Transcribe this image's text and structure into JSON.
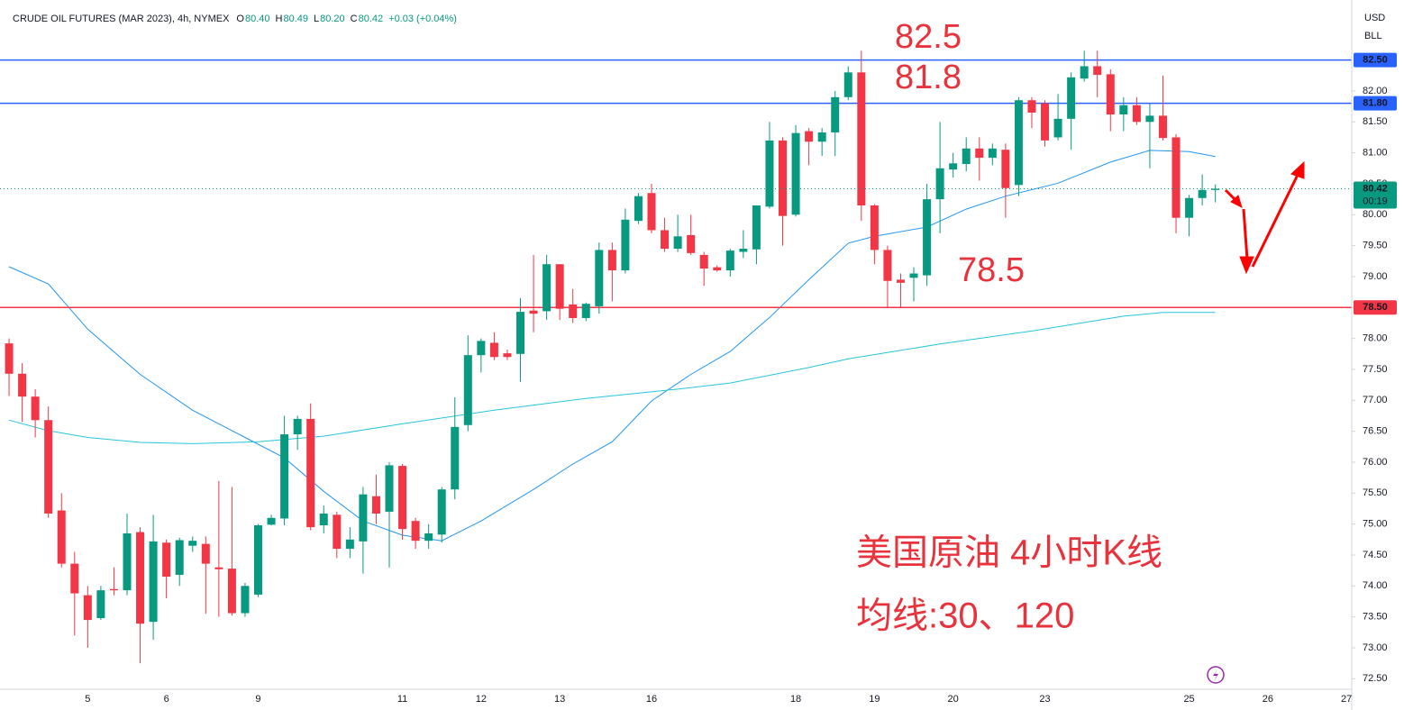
{
  "header": {
    "symbol": "CRUDE OIL FUTURES (MAR 2023), 4h, NYMEX",
    "ohlc": [
      {
        "label": "O",
        "value": "80.40"
      },
      {
        "label": "H",
        "value": "80.49"
      },
      {
        "label": "L",
        "value": "80.20"
      },
      {
        "label": "C",
        "value": "80.42"
      }
    ],
    "change": "+0.03 (+0.04%)",
    "currency": "USD",
    "unit": "BLL"
  },
  "chart_data": {
    "type": "candlestick",
    "up_color": "#089981",
    "down_color": "#f23645",
    "open": [
      77.92,
      77.43,
      77.06,
      76.68,
      75.22,
      74.36,
      73.85,
      73.48,
      73.95,
      73.93,
      74.87,
      73.42,
      74.7,
      74.18,
      74.65,
      74.68,
      74.3,
      74.28,
      73.56,
      73.86,
      74.99,
      75.09,
      76.45,
      76.7,
      74.98,
      75.15,
      74.6,
      74.72,
      75.45,
      75.2,
      75.94,
      75.05,
      74.73,
      74.83,
      75.56,
      76.6,
      77.73,
      77.93,
      77.76,
      77.75,
      78.45,
      78.44,
      79.2,
      78.55,
      78.33,
      78.52,
      79.43,
      79.1,
      79.9,
      80.35,
      79.75,
      79.45,
      79.67,
      79.35,
      79.15,
      79.1,
      79.4,
      79.44,
      80.13,
      81.2,
      80.0,
      81.35,
      81.18,
      81.33,
      81.9,
      82.3,
      80.15,
      79.43,
      78.95,
      78.98,
      79.02,
      80.25,
      80.73,
      80.82,
      81.07,
      80.92,
      81.05,
      80.48,
      81.85,
      81.8,
      81.25,
      81.55,
      82.2,
      82.4,
      82.27,
      81.62,
      81.77,
      81.5,
      81.6,
      81.25,
      79.95,
      80.27,
      80.4
    ],
    "high": [
      78.0,
      77.6,
      77.18,
      76.9,
      75.5,
      74.55,
      74.0,
      74.0,
      74.3,
      75.17,
      74.95,
      75.15,
      74.75,
      74.78,
      74.8,
      74.8,
      75.7,
      75.6,
      74.05,
      75.0,
      75.15,
      76.75,
      76.75,
      76.95,
      75.3,
      75.2,
      74.95,
      75.6,
      75.8,
      76.0,
      75.97,
      75.1,
      75.0,
      75.6,
      77.05,
      78.05,
      78.0,
      78.1,
      77.82,
      78.65,
      79.35,
      79.35,
      79.2,
      78.8,
      78.58,
      79.55,
      79.55,
      80.1,
      80.35,
      80.5,
      79.95,
      80.0,
      80.0,
      79.4,
      79.18,
      79.45,
      79.75,
      80.15,
      81.5,
      81.25,
      81.45,
      81.4,
      81.4,
      82.0,
      82.4,
      82.65,
      80.17,
      79.5,
      79.05,
      79.15,
      80.5,
      81.5,
      81.0,
      81.25,
      81.25,
      81.15,
      81.15,
      81.9,
      81.9,
      81.85,
      81.95,
      82.3,
      82.65,
      82.65,
      82.35,
      81.9,
      81.9,
      81.8,
      82.25,
      81.3,
      80.32,
      80.65,
      80.49
    ],
    "low": [
      77.07,
      76.65,
      76.4,
      75.1,
      74.3,
      73.2,
      73.0,
      73.45,
      73.85,
      73.85,
      72.75,
      73.13,
      73.8,
      74.0,
      74.55,
      73.55,
      73.5,
      73.52,
      73.5,
      73.82,
      74.98,
      74.98,
      76.2,
      74.9,
      74.85,
      74.45,
      74.45,
      74.2,
      75.0,
      74.3,
      74.75,
      74.6,
      74.6,
      74.7,
      75.4,
      76.5,
      77.45,
      77.65,
      77.65,
      77.3,
      78.1,
      78.3,
      78.3,
      78.25,
      78.28,
      78.4,
      78.6,
      79.05,
      79.85,
      79.7,
      79.4,
      79.4,
      79.35,
      78.85,
      79.08,
      79.0,
      79.3,
      79.2,
      80.1,
      79.5,
      79.97,
      80.8,
      80.95,
      80.95,
      81.85,
      79.9,
      79.2,
      78.5,
      78.5,
      78.6,
      78.85,
      79.7,
      80.6,
      80.7,
      80.55,
      80.8,
      79.95,
      80.3,
      81.4,
      81.1,
      81.2,
      81.05,
      82.15,
      81.9,
      81.35,
      81.35,
      81.45,
      80.75,
      81.2,
      79.7,
      79.65,
      80.15,
      80.2
    ],
    "close": [
      77.43,
      77.06,
      76.68,
      75.17,
      74.36,
      73.88,
      73.45,
      73.93,
      73.93,
      74.85,
      73.39,
      74.72,
      74.15,
      74.74,
      74.73,
      74.36,
      74.27,
      73.56,
      74.0,
      74.98,
      75.1,
      76.45,
      76.7,
      74.95,
      75.17,
      74.6,
      74.75,
      75.48,
      75.17,
      75.95,
      74.92,
      74.73,
      74.85,
      75.56,
      76.57,
      77.73,
      77.96,
      77.7,
      77.7,
      78.43,
      78.4,
      79.2,
      78.48,
      78.33,
      78.56,
      79.43,
      79.1,
      79.92,
      80.3,
      79.75,
      79.45,
      79.65,
      79.38,
      79.13,
      79.1,
      79.42,
      79.45,
      80.15,
      81.2,
      79.98,
      81.32,
      81.18,
      81.33,
      81.9,
      82.3,
      80.15,
      79.43,
      78.93,
      78.9,
      79.05,
      80.25,
      80.75,
      80.83,
      81.07,
      80.92,
      81.07,
      80.43,
      81.85,
      81.65,
      81.2,
      81.55,
      82.22,
      82.4,
      82.26,
      81.62,
      81.77,
      81.5,
      81.6,
      81.24,
      79.95,
      80.27,
      80.4,
      80.42
    ],
    "moving_averages": [
      {
        "color": "#2196f3",
        "x": [
          0,
          3,
          6,
          10,
          14,
          18,
          21,
          24,
          27,
          30,
          33,
          36,
          40,
          43,
          46,
          49,
          52,
          55,
          58,
          61,
          64,
          66,
          70,
          73,
          76,
          80,
          84,
          87,
          90,
          92
        ],
        "values": [
          79.16,
          78.88,
          78.15,
          77.42,
          76.84,
          76.4,
          76.07,
          75.53,
          75.05,
          74.82,
          74.73,
          75.05,
          75.56,
          75.97,
          76.33,
          76.99,
          77.42,
          77.79,
          78.34,
          78.95,
          79.54,
          79.65,
          79.8,
          80.09,
          80.3,
          80.51,
          80.85,
          81.04,
          81.02,
          80.94
        ]
      },
      {
        "color": "#26c6da",
        "x": [
          0,
          3,
          6,
          10,
          14,
          19,
          24,
          30,
          37,
          44,
          51,
          55,
          61,
          64,
          71,
          78,
          85,
          88,
          92
        ],
        "values": [
          76.68,
          76.51,
          76.4,
          76.32,
          76.3,
          76.33,
          76.42,
          76.62,
          76.84,
          77.03,
          77.18,
          77.28,
          77.53,
          77.67,
          77.91,
          78.12,
          78.36,
          78.42,
          78.42
        ]
      }
    ],
    "levels": [
      {
        "value": 82.5,
        "label": "82.50",
        "color": "#2962ff"
      },
      {
        "value": 81.8,
        "label": "81.80",
        "color": "#2962ff"
      },
      {
        "value": 78.5,
        "label": "78.50",
        "color": "#f23645"
      }
    ],
    "last_price": {
      "value": 80.42,
      "label": "80.42",
      "countdown": "00:19",
      "color": "#089981"
    },
    "xlim": [
      -0.69,
      102.4
    ],
    "ylim": [
      72.33,
      83.47
    ],
    "yticks": [
      {
        "value": 72.5,
        "label": "72.50"
      },
      {
        "value": 73,
        "label": "73.00"
      },
      {
        "value": 73.5,
        "label": "73.50"
      },
      {
        "value": 74,
        "label": "74.00"
      },
      {
        "value": 74.5,
        "label": "74.50"
      },
      {
        "value": 75,
        "label": "75.00"
      },
      {
        "value": 75.5,
        "label": "75.50"
      },
      {
        "value": 76,
        "label": "76.00"
      },
      {
        "value": 76.5,
        "label": "76.50"
      },
      {
        "value": 77,
        "label": "77.00"
      },
      {
        "value": 77.5,
        "label": "77.50"
      },
      {
        "value": 78,
        "label": "78.00"
      },
      {
        "value": 78.5,
        "label": "78.50"
      },
      {
        "value": 79,
        "label": "79.00"
      },
      {
        "value": 79.5,
        "label": "79.50"
      },
      {
        "value": 80,
        "label": "80.00"
      },
      {
        "value": 80.5,
        "label": "80.50"
      },
      {
        "value": 81,
        "label": "81.00"
      },
      {
        "value": 81.5,
        "label": "81.50"
      },
      {
        "value": 82,
        "label": "82.00"
      }
    ],
    "xticks": [
      {
        "value": 6,
        "label": "5"
      },
      {
        "value": 12,
        "label": "6"
      },
      {
        "value": 19,
        "label": "9"
      },
      {
        "value": 30,
        "label": "11"
      },
      {
        "value": 36,
        "label": "12"
      },
      {
        "value": 42,
        "label": "13"
      },
      {
        "value": 49,
        "label": "16"
      },
      {
        "value": 60,
        "label": "18"
      },
      {
        "value": 66,
        "label": "19"
      },
      {
        "value": 72,
        "label": "20"
      },
      {
        "value": 79,
        "label": "23"
      },
      {
        "value": 90,
        "label": "25"
      },
      {
        "value": 96,
        "label": "26"
      },
      {
        "value": 102,
        "label": "27"
      }
    ],
    "annotations": [
      "82.5",
      "81.8",
      "78.5",
      "美国原油 4小时K线",
      "均线:30、120"
    ]
  }
}
